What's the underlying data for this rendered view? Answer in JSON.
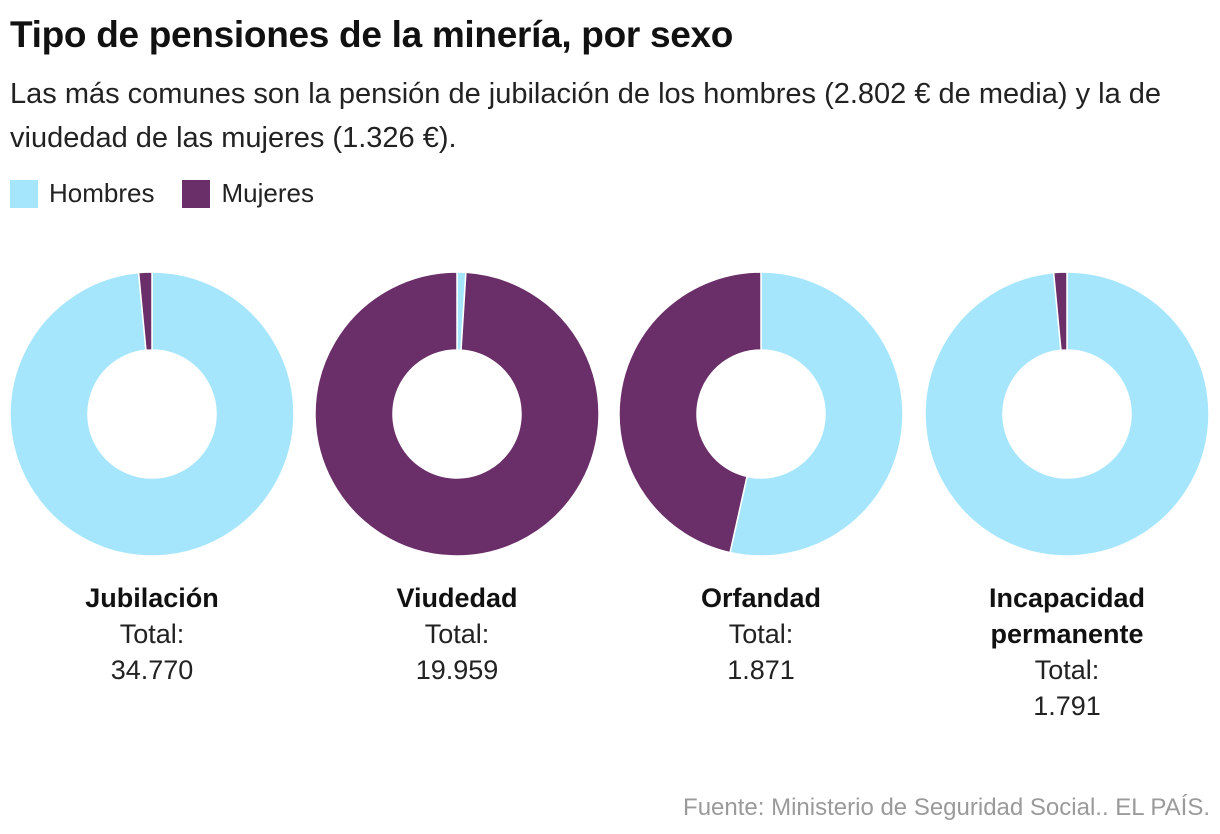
{
  "header": {
    "title": "Tipo de pensiones de la minería, por sexo",
    "subtitle": "Las más comunes son la pensión de jubilación de los hombres (2.802 € de media) y la de viudedad de las mujeres (1.326 €)."
  },
  "legend": [
    {
      "label": "Hombres",
      "color": "#a6e6fd"
    },
    {
      "label": "Mujeres",
      "color": "#6a2e68"
    }
  ],
  "total_label": "Total:",
  "source": "Fuente: Ministerio de Seguridad Social.. EL PAÍS.",
  "chart_data": {
    "type": "pie",
    "variant": "donut",
    "series_names": [
      "Hombres",
      "Mujeres"
    ],
    "colors": {
      "Hombres": "#a6e6fd",
      "Mujeres": "#6a2e68"
    },
    "charts": [
      {
        "category": "Jubilación",
        "total": "34.770",
        "share_mujeres": 0.015
      },
      {
        "category": "Viudedad",
        "total": "19.959",
        "share_mujeres": 0.99
      },
      {
        "category": "Orfandad",
        "total": "1.871",
        "share_mujeres": 0.465
      },
      {
        "category": "Incapacidad permanente",
        "total": "1.791",
        "share_mujeres": 0.015
      }
    ]
  }
}
